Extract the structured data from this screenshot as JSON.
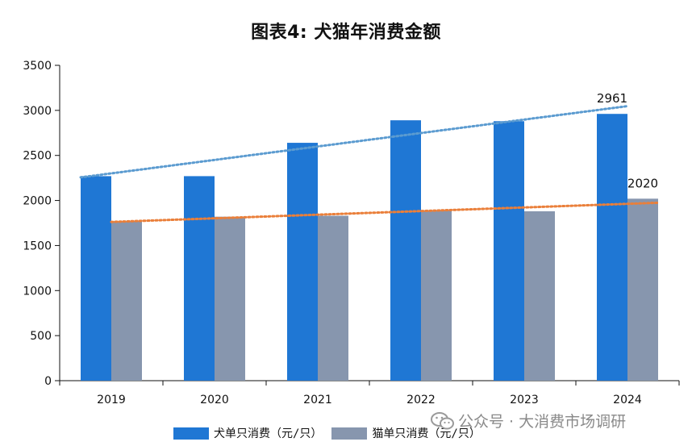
{
  "colors": {
    "dog": "#1f77d4",
    "cat": "#8796ae",
    "dog_trend": "#5b9bd0",
    "cat_trend": "#ea7f3a",
    "axis": "#111111"
  },
  "chart_data": {
    "type": "bar",
    "title": "图表4: 犬猫年消费金额",
    "categories": [
      "2019",
      "2020",
      "2021",
      "2022",
      "2023",
      "2024"
    ],
    "series": [
      {
        "name": "犬单只消费（元/只）",
        "values": [
          2270,
          2270,
          2640,
          2890,
          2880,
          2961
        ],
        "color": "#1f77d4",
        "trendline": "linear"
      },
      {
        "name": "猫单只消费（元/只）",
        "values": [
          1770,
          1820,
          1830,
          1890,
          1880,
          2020
        ],
        "color": "#8796ae",
        "trendline": "linear"
      }
    ],
    "yticks": [
      "0",
      "500",
      "1000",
      "1500",
      "2000",
      "2500",
      "3000",
      "3500"
    ],
    "ylim": [
      0,
      3500
    ],
    "data_labels": [
      {
        "series": 0,
        "category": "2024",
        "text": "2961"
      },
      {
        "series": 1,
        "category": "2024",
        "text": "2020"
      }
    ],
    "legend_position": "bottom",
    "grid": false
  },
  "watermark": {
    "text": "公众号 · 大消费市场调研",
    "icon": "wechat-icon"
  }
}
